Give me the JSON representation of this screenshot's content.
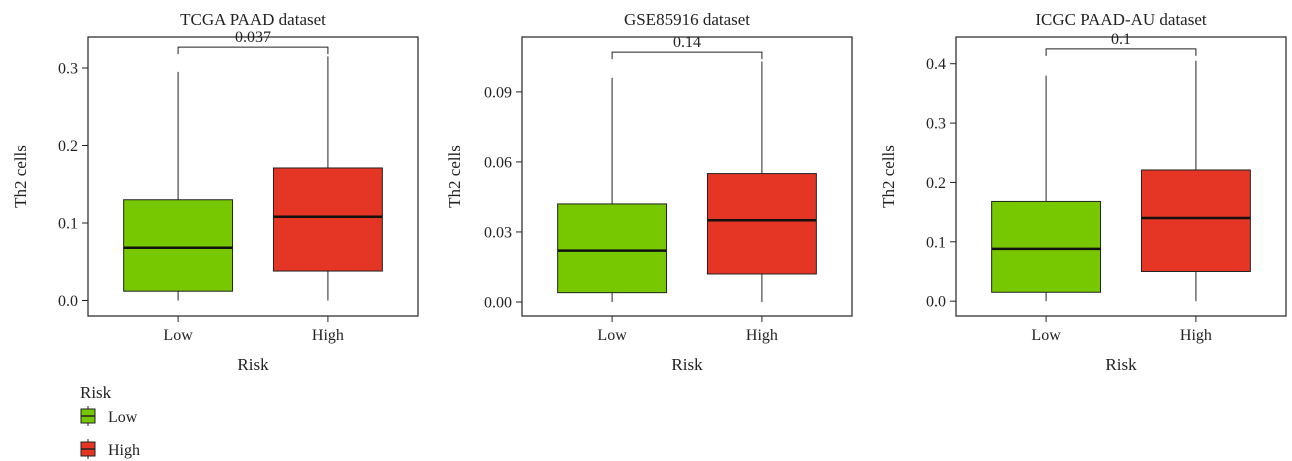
{
  "legend": {
    "title": "Risk",
    "items": [
      {
        "label": "Low",
        "color": "#77c800"
      },
      {
        "label": "High",
        "color": "#e53524"
      }
    ]
  },
  "chart_data": [
    {
      "type": "box",
      "title": "TCGA PAAD dataset",
      "xlabel": "Risk",
      "ylabel": "Th2 cells",
      "categories": [
        "Low",
        "High"
      ],
      "ylim": [
        -0.02,
        0.34
      ],
      "yticks": [
        "0.0",
        "0.1",
        "0.2",
        "0.3"
      ],
      "ytick_values": [
        0.0,
        0.1,
        0.2,
        0.3
      ],
      "boxes": [
        {
          "group": "Low",
          "min": 0.0,
          "q1": 0.012,
          "median": 0.068,
          "q3": 0.13,
          "max": 0.295
        },
        {
          "group": "High",
          "min": 0.0,
          "q1": 0.038,
          "median": 0.108,
          "q3": 0.171,
          "max": 0.315
        }
      ],
      "p_value": "0.037",
      "bracket_y": 0.327
    },
    {
      "type": "box",
      "title": "GSE85916 dataset",
      "xlabel": "Risk",
      "ylabel": "Th2 cells",
      "categories": [
        "Low",
        "High"
      ],
      "ylim": [
        -0.006,
        0.1135
      ],
      "yticks": [
        "0.00",
        "0.03",
        "0.06",
        "0.09"
      ],
      "ytick_values": [
        0.0,
        0.03,
        0.06,
        0.09
      ],
      "boxes": [
        {
          "group": "Low",
          "min": 0.0,
          "q1": 0.004,
          "median": 0.022,
          "q3": 0.042,
          "max": 0.096
        },
        {
          "group": "High",
          "min": 0.0,
          "q1": 0.012,
          "median": 0.035,
          "q3": 0.055,
          "max": 0.103
        }
      ],
      "p_value": "0.14",
      "bracket_y": 0.107
    },
    {
      "type": "box",
      "title": "ICGC PAAD-AU dataset",
      "xlabel": "Risk",
      "ylabel": "Th2 cells",
      "categories": [
        "Low",
        "High"
      ],
      "ylim": [
        -0.025,
        0.445
      ],
      "yticks": [
        "0.0",
        "0.1",
        "0.2",
        "0.3",
        "0.4"
      ],
      "ytick_values": [
        0.0,
        0.1,
        0.2,
        0.3,
        0.4
      ],
      "boxes": [
        {
          "group": "Low",
          "min": 0.0,
          "q1": 0.015,
          "median": 0.088,
          "q3": 0.168,
          "max": 0.38
        },
        {
          "group": "High",
          "min": 0.0,
          "q1": 0.05,
          "median": 0.14,
          "q3": 0.221,
          "max": 0.405
        }
      ],
      "p_value": "0.1",
      "bracket_y": 0.425
    }
  ]
}
